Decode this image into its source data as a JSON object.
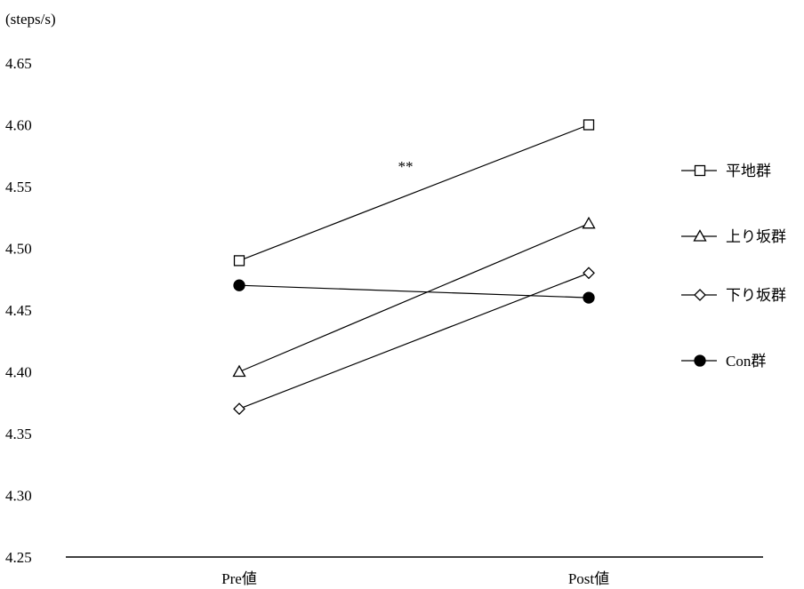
{
  "chart_data": {
    "type": "line",
    "unit_label": "(steps/s)",
    "categories": [
      "Pre値",
      "Post値"
    ],
    "y_ticks": [
      "4.65",
      "4.60",
      "4.55",
      "4.50",
      "4.45",
      "4.40",
      "4.35",
      "4.30",
      "4.25"
    ],
    "ylim": [
      4.25,
      4.65
    ],
    "grid": false,
    "legend_position": "right",
    "annotation": "**",
    "series": [
      {
        "name": "平地群",
        "marker": "square",
        "values": [
          4.49,
          4.6
        ]
      },
      {
        "name": "上り坂群",
        "marker": "triangle",
        "values": [
          4.4,
          4.52
        ]
      },
      {
        "name": "下り坂群",
        "marker": "diamond",
        "values": [
          4.37,
          4.48
        ]
      },
      {
        "name": "Con群",
        "marker": "circle",
        "values": [
          4.47,
          4.46
        ]
      }
    ]
  }
}
